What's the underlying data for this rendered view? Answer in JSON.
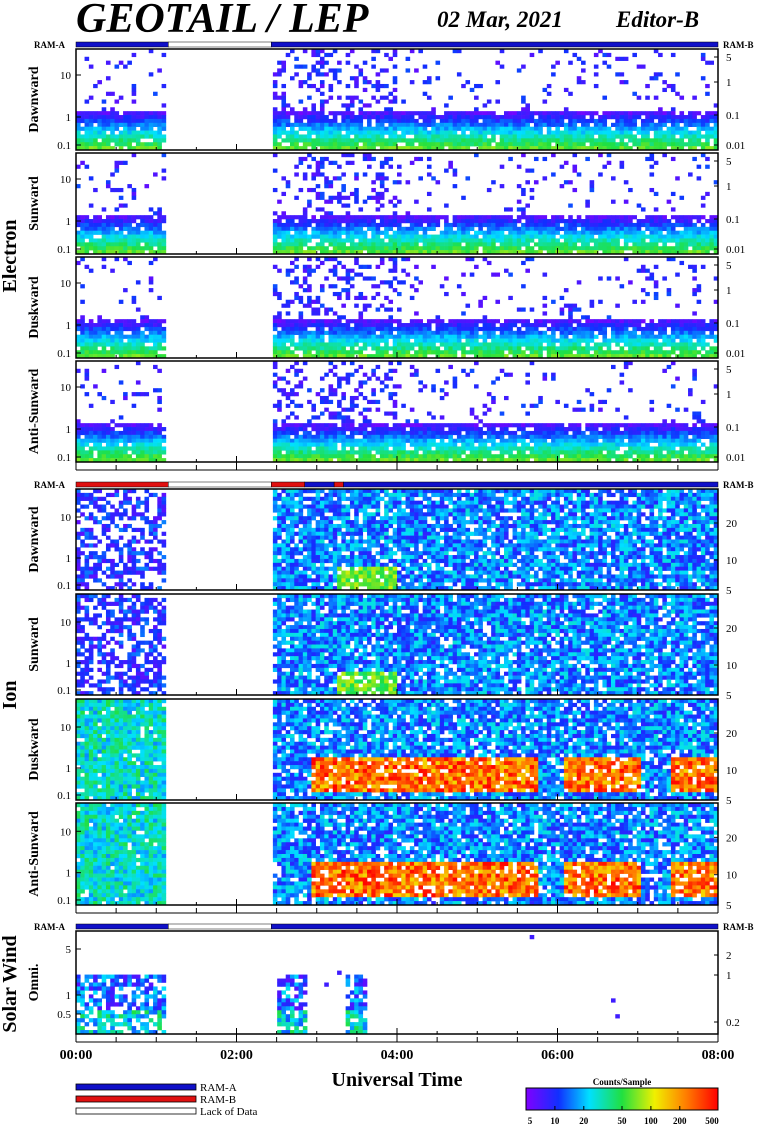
{
  "header": {
    "title": "GEOTAIL / LEP",
    "date": "02 Mar, 2021",
    "editor": "Editor-B"
  },
  "colors": {
    "ram_a": "#1010c8",
    "ram_b": "#e01010",
    "lack": "#ffffff"
  },
  "mode_bar_labels": {
    "left": "RAM-A",
    "right": "RAM-B"
  },
  "chart_data": [
    {
      "type": "heatmap",
      "group": "Electron",
      "panels": [
        "Dawnward",
        "Sunward",
        "Duskward",
        "Anti-Sunward"
      ],
      "ylabels_left": [
        "10",
        "1",
        "0.1"
      ],
      "ylabels_right": [
        "5",
        "1",
        "0.1",
        "0.01"
      ],
      "mode_bar": [
        {
          "from": "00:00",
          "to": "01:09",
          "mode": "RAM-A"
        },
        {
          "from": "01:09",
          "to": "02:26",
          "mode": "Lack of Data"
        },
        {
          "from": "02:26",
          "to": "08:00",
          "mode": "RAM-A"
        }
      ],
      "data_gaps": [
        {
          "from": "01:09",
          "to": "02:26"
        }
      ]
    },
    {
      "type": "heatmap",
      "group": "Ion",
      "panels": [
        "Dawnward",
        "Sunward",
        "Duskward",
        "Anti-Sunward"
      ],
      "ylabels_left": [
        "10",
        "1",
        "0.1"
      ],
      "ylabels_right": [
        "20",
        "10",
        "5"
      ],
      "mode_bar": [
        {
          "from": "00:00",
          "to": "01:09",
          "mode": "RAM-B"
        },
        {
          "from": "01:09",
          "to": "02:26",
          "mode": "Lack of Data"
        },
        {
          "from": "02:26",
          "to": "02:51",
          "mode": "RAM-B"
        },
        {
          "from": "02:51",
          "to": "03:13",
          "mode": "RAM-A"
        },
        {
          "from": "03:13",
          "to": "03:20",
          "mode": "RAM-B"
        },
        {
          "from": "03:20",
          "to": "08:00",
          "mode": "RAM-A"
        }
      ],
      "data_gaps": [
        {
          "from": "01:09",
          "to": "02:26"
        }
      ]
    },
    {
      "type": "heatmap",
      "group": "Solar Wind",
      "panels": [
        "Omni."
      ],
      "ylabels_left": [
        "5",
        "1",
        "0.5"
      ],
      "ylabels_right": [
        "2",
        "1",
        "0.2"
      ],
      "mode_bar": [
        {
          "from": "00:00",
          "to": "01:09",
          "mode": "RAM-A"
        },
        {
          "from": "01:09",
          "to": "02:26",
          "mode": "Lack of Data"
        },
        {
          "from": "02:26",
          "to": "08:00",
          "mode": "RAM-A"
        }
      ],
      "data_gaps": [
        {
          "from": "01:09",
          "to": "02:26"
        }
      ]
    }
  ],
  "x_axis": {
    "title": "Universal Time",
    "tick_labels": [
      "00:00",
      "02:00",
      "04:00",
      "06:00",
      "08:00"
    ],
    "range": [
      "00:00",
      "08:00"
    ]
  },
  "legend": {
    "items": [
      {
        "label": "RAM-A",
        "color": "#1010c8"
      },
      {
        "label": "RAM-B",
        "color": "#e01010"
      },
      {
        "label": "Lack of Data",
        "color": "#ffffff"
      }
    ]
  },
  "colorbar": {
    "title": "Counts/Sample",
    "tick_labels": [
      "5",
      "10",
      "20",
      "50",
      "100",
      "200",
      "500"
    ],
    "scale": "log",
    "range": [
      5,
      500
    ]
  }
}
